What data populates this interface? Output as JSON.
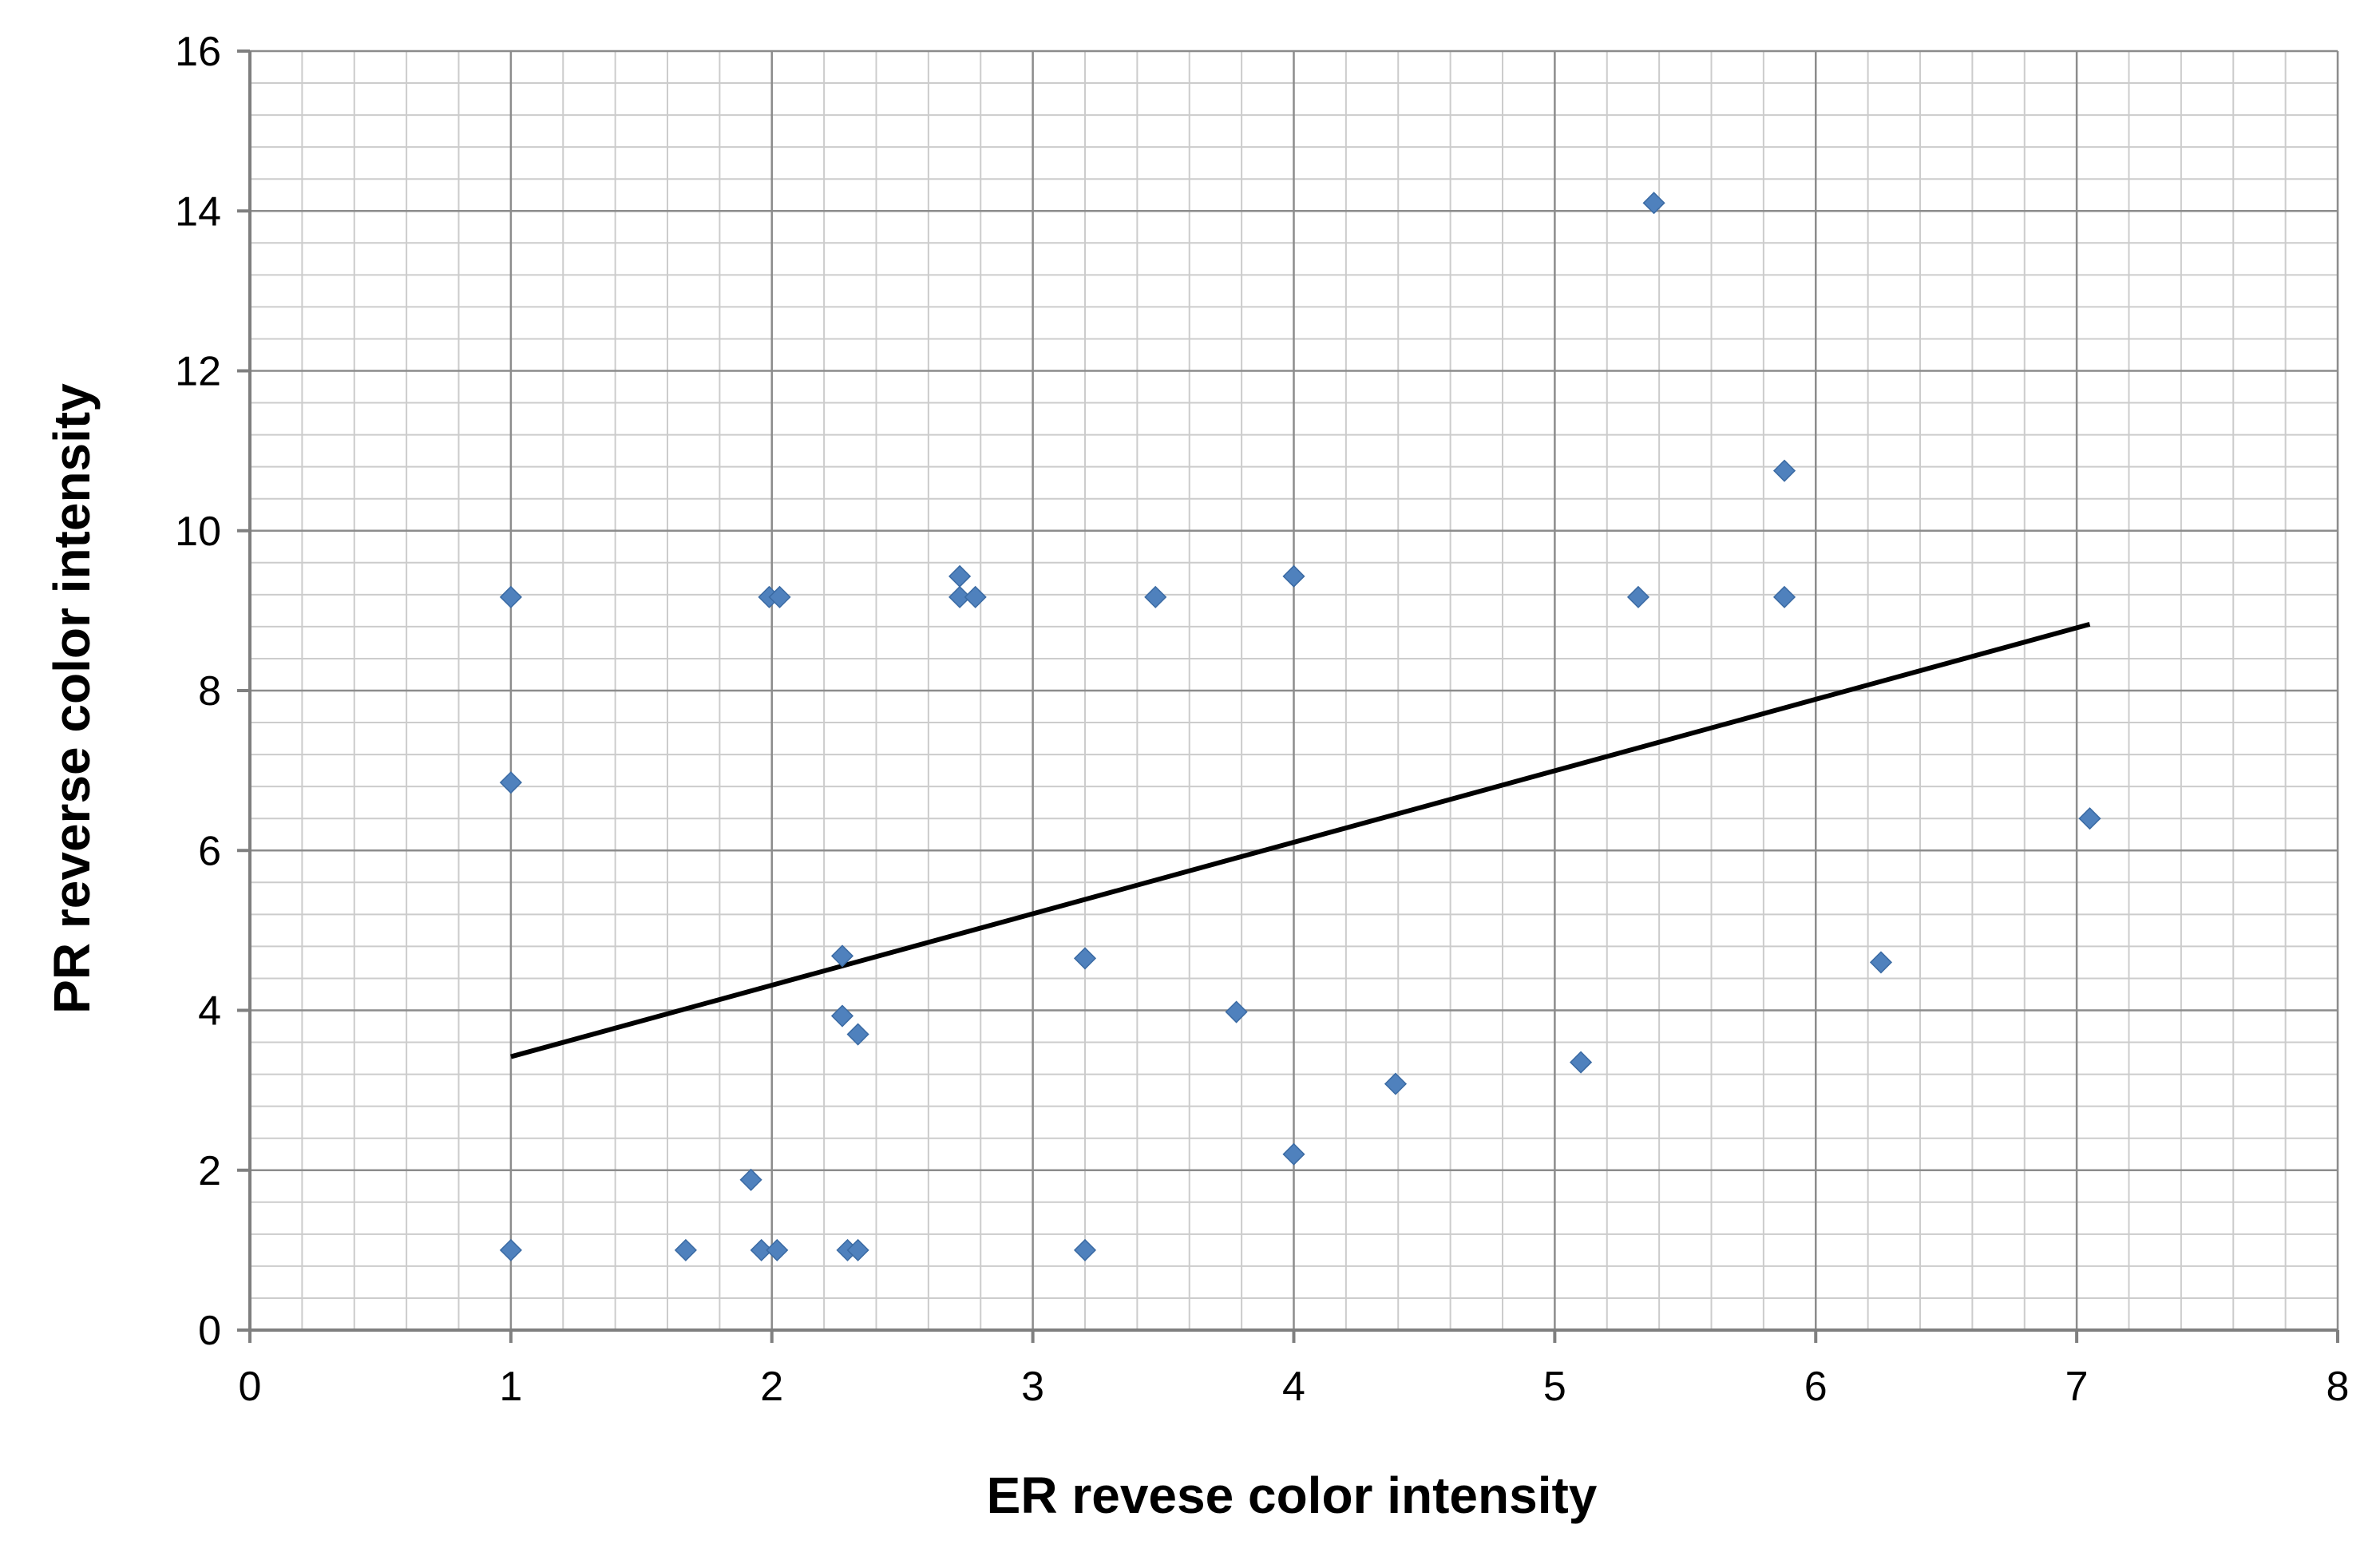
{
  "chart_data": {
    "type": "scatter",
    "title": "",
    "xlabel": "ER revese color intensity",
    "ylabel": "PR reverse color intensity",
    "xlim": [
      0,
      8
    ],
    "ylim": [
      0,
      16
    ],
    "x_ticks": [
      0,
      1,
      2,
      3,
      4,
      5,
      6,
      7,
      8
    ],
    "y_ticks": [
      0,
      2,
      4,
      6,
      8,
      10,
      12,
      14,
      16
    ],
    "x_tick_labels": [
      "0",
      "1",
      "2",
      "3",
      "4",
      "5",
      "6",
      "7",
      "8"
    ],
    "y_tick_labels": [
      "0",
      "2",
      "4",
      "6",
      "8",
      "10",
      "12",
      "14",
      "16"
    ],
    "grid": true,
    "legend": "none",
    "marker": "diamond",
    "marker_color": "#4F81BD",
    "trendline_color": "#000000",
    "series": [
      {
        "points": [
          [
            1.0,
            9.17
          ],
          [
            1.0,
            6.85
          ],
          [
            1.0,
            1.0
          ],
          [
            1.67,
            1.0
          ],
          [
            1.92,
            1.88
          ],
          [
            1.96,
            1.0
          ],
          [
            2.02,
            1.0
          ],
          [
            1.99,
            9.17
          ],
          [
            2.03,
            9.17
          ],
          [
            2.27,
            4.68
          ],
          [
            2.27,
            3.93
          ],
          [
            2.33,
            3.7
          ],
          [
            2.29,
            1.0
          ],
          [
            2.33,
            1.0
          ],
          [
            2.72,
            9.43
          ],
          [
            2.72,
            9.17
          ],
          [
            2.78,
            9.17
          ],
          [
            3.2,
            4.65
          ],
          [
            3.2,
            1.0
          ],
          [
            3.47,
            9.17
          ],
          [
            3.78,
            3.98
          ],
          [
            4.0,
            9.43
          ],
          [
            4.0,
            2.2
          ],
          [
            4.39,
            3.08
          ],
          [
            5.1,
            3.35
          ],
          [
            5.32,
            9.17
          ],
          [
            5.38,
            14.1
          ],
          [
            5.88,
            10.75
          ],
          [
            5.88,
            9.17
          ],
          [
            6.25,
            4.6
          ],
          [
            7.05,
            6.4
          ]
        ]
      }
    ],
    "trendline": {
      "x": [
        1.0,
        7.05
      ],
      "y": [
        3.42,
        8.83
      ]
    }
  }
}
